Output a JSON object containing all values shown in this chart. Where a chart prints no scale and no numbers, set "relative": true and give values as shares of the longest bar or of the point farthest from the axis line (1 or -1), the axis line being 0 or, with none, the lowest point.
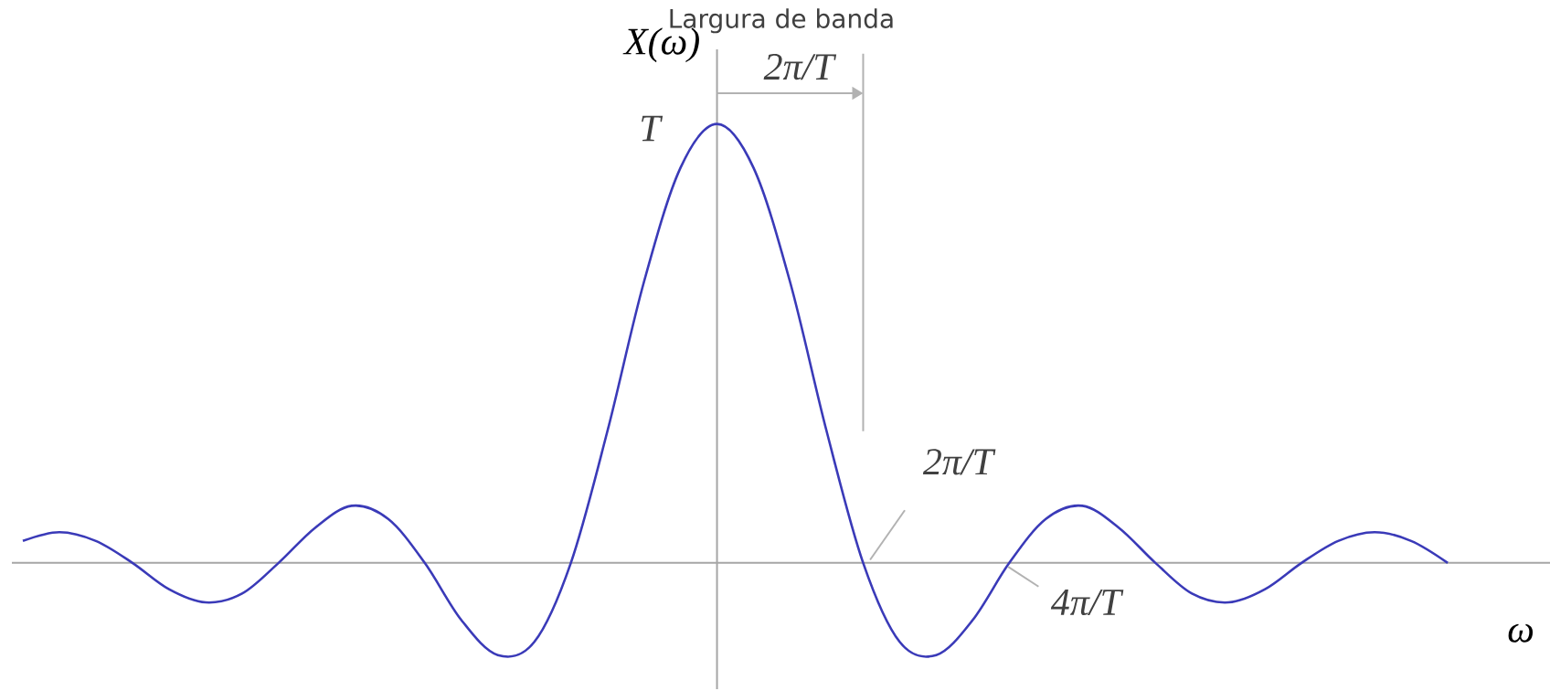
{
  "chart_data": {
    "type": "line",
    "relative": true,
    "color": "#3a3ab8",
    "xlabel": "ω",
    "ylabel": "X(ω)",
    "categories": [
      null,
      null,
      null,
      null,
      null,
      null,
      null,
      null,
      null,
      null,
      null,
      null,
      null,
      null,
      null,
      null,
      null,
      null,
      null,
      null,
      null,
      null,
      null,
      null,
      null,
      null,
      null,
      null,
      null,
      null,
      null,
      null,
      null,
      null,
      null,
      null,
      null,
      null,
      null,
      null
    ],
    "values": [
      0.05,
      0.07,
      0.05,
      0,
      -0.06,
      -0.09,
      -0.07,
      0,
      0.08,
      0.13,
      0.1,
      0,
      -0.13,
      -0.21,
      -0.18,
      0,
      0.3,
      0.64,
      0.9,
      1,
      0.9,
      0.64,
      0.3,
      0,
      -0.18,
      -0.21,
      -0.13,
      0,
      0.1,
      0.13,
      0.08,
      0,
      -0.07,
      -0.09,
      -0.06,
      0,
      0.05,
      0.07,
      0.05,
      0
    ],
    "annotations": [
      "T",
      "Largura de banda",
      "2π/T",
      "2π/T",
      "4π/T"
    ]
  }
}
